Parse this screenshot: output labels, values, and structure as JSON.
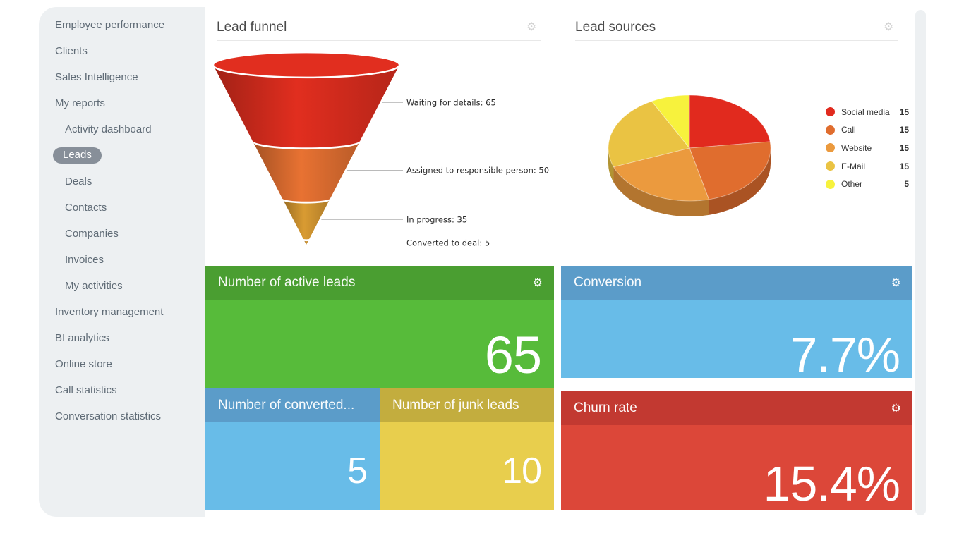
{
  "icons": {
    "gear-icon": "⚙"
  },
  "sidebar": {
    "items": [
      {
        "label": "Employee performance",
        "level": "top",
        "selected": false
      },
      {
        "label": "Clients",
        "level": "top",
        "selected": false
      },
      {
        "label": "Sales Intelligence",
        "level": "top",
        "selected": false
      },
      {
        "label": "My reports",
        "level": "top",
        "selected": false
      },
      {
        "label": "Activity dashboard",
        "level": "sub",
        "selected": false
      },
      {
        "label": "Leads",
        "level": "sub",
        "selected": true
      },
      {
        "label": "Deals",
        "level": "sub",
        "selected": false
      },
      {
        "label": "Contacts",
        "level": "sub",
        "selected": false
      },
      {
        "label": "Companies",
        "level": "sub",
        "selected": false
      },
      {
        "label": "Invoices",
        "level": "sub",
        "selected": false
      },
      {
        "label": "My activities",
        "level": "sub",
        "selected": false
      },
      {
        "label": "Inventory management",
        "level": "top",
        "selected": false
      },
      {
        "label": "BI analytics",
        "level": "top",
        "selected": false
      },
      {
        "label": "Online store",
        "level": "top",
        "selected": false
      },
      {
        "label": "Call statistics",
        "level": "top",
        "selected": false
      },
      {
        "label": "Conversation statistics",
        "level": "top",
        "selected": false
      }
    ],
    "selected_pill_color": "#878f99"
  },
  "panels": {
    "funnel": {
      "title": "Lead funnel"
    },
    "sources": {
      "title": "Lead sources"
    }
  },
  "chart_data": [
    {
      "type": "funnel",
      "title": "Lead funnel",
      "stages": [
        {
          "label": "Waiting for details",
          "value": 65,
          "color": "#c9291c"
        },
        {
          "label": "Assigned to responsible person",
          "value": 50,
          "color": "#cf662d"
        },
        {
          "label": "In progress",
          "value": 35,
          "color": "#c28a2d"
        },
        {
          "label": "Converted to deal",
          "value": 5,
          "color": "#c28a2d"
        }
      ],
      "label_format": "label: value",
      "label_color": "#2b2b2b",
      "connector_color": "#b0b0b0"
    },
    {
      "type": "pie",
      "title": "Lead sources",
      "style": "3d",
      "legend_position": "right",
      "slices": [
        {
          "label": "Social media",
          "value": 15,
          "color": "#e12a1e"
        },
        {
          "label": "Call",
          "value": 15,
          "color": "#e06d2e"
        },
        {
          "label": "Website",
          "value": 15,
          "color": "#eb9a3e"
        },
        {
          "label": "E-Mail",
          "value": 15,
          "color": "#eac343"
        },
        {
          "label": "Other",
          "value": 5,
          "color": "#f7f23d"
        }
      ]
    }
  ],
  "tiles": [
    {
      "title": "Number of active leads",
      "value": "65",
      "header_color": "#4a9e31",
      "body_color": "#57bb3a",
      "has_gear": true
    },
    {
      "title": "Number of converted...",
      "value": "5",
      "header_color": "#5b9cc9",
      "body_color": "#68bce8",
      "has_gear": false
    },
    {
      "title": "Number of junk leads",
      "value": "10",
      "header_color": "#c3ad3e",
      "body_color": "#e8ce4d",
      "has_gear": false
    },
    {
      "title": "Conversion",
      "value": "7.7%",
      "header_color": "#5b9cc9",
      "body_color": "#68bce8",
      "has_gear": true
    },
    {
      "title": "Churn rate",
      "value": "15.4%",
      "header_color": "#c23931",
      "body_color": "#dc4739",
      "has_gear": true
    }
  ]
}
